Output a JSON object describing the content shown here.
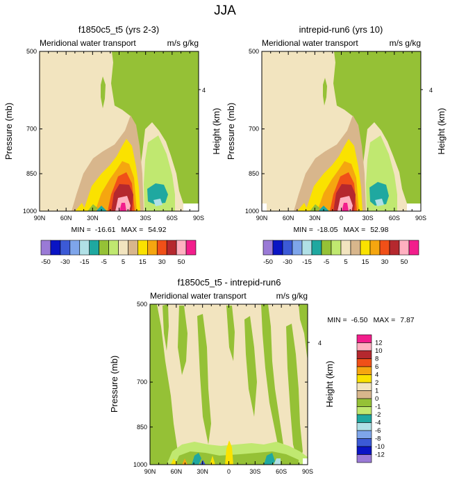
{
  "figure_title": "JJA",
  "colors": {
    "-50": "#9a7ad6",
    "-30": "#0a14c4",
    "-20": "#3c5ad6",
    "-15": "#7ea5ea",
    "-10": "#b0e0e6",
    "-5": "#1fa8a0",
    "0": "#95c136",
    "1": "#c0e870",
    "2": "#f2e4bf",
    "5": "#d8b68c",
    "15": "#fae200",
    "20": "#f5a610",
    "30": "#f05018",
    "40": "#b5282e",
    "50": "#ffb0c0",
    "60": "#f21e8c"
  },
  "chart_data": [
    {
      "type": "contour",
      "id": "panel-1",
      "title": "f1850c5_t5 (yrs 2-3)",
      "subtitle_left": "Meridional water transport",
      "subtitle_right": "m/s g/kg",
      "ylabel": "Pressure (mb)",
      "ylabel_right": "Height (km)",
      "yticks": [
        "500",
        "700",
        "850",
        "1000"
      ],
      "ytick_values": [
        500,
        700,
        850,
        1000
      ],
      "height_ticks": [
        "4"
      ],
      "xticks": [
        "90N",
        "60N",
        "30N",
        "0",
        "30S",
        "60S",
        "90S"
      ],
      "ylim": [
        500,
        1000
      ],
      "stats": {
        "min_label": "MIN =",
        "min": "-16.61",
        "max_label": "MAX =",
        "max": "54.92"
      }
    },
    {
      "type": "contour",
      "id": "panel-2",
      "title": "intrepid-run6 (yrs 10)",
      "subtitle_left": "Meridional water transport",
      "subtitle_right": "m/s g/kg",
      "ylabel": "Pressure (mb)",
      "ylabel_right": "Height (km)",
      "yticks": [
        "500",
        "700",
        "850",
        "1000"
      ],
      "ytick_values": [
        500,
        700,
        850,
        1000
      ],
      "height_ticks": [
        "4"
      ],
      "xticks": [
        "90N",
        "60N",
        "30N",
        "0",
        "30S",
        "60S",
        "90S"
      ],
      "ylim": [
        500,
        1000
      ],
      "stats": {
        "min_label": "MIN =",
        "min": "-18.05",
        "max_label": "MAX =",
        "max": "52.98"
      }
    },
    {
      "type": "contour",
      "id": "panel-3",
      "title": "f1850c5_t5 - intrepid-run6",
      "subtitle_left": "Meridional water transport",
      "subtitle_right": "m/s g/kg",
      "ylabel": "Pressure (mb)",
      "ylabel_right": "Height (km)",
      "yticks": [
        "500",
        "700",
        "850",
        "1000"
      ],
      "ytick_values": [
        500,
        700,
        850,
        1000
      ],
      "height_ticks": [
        "4"
      ],
      "xticks": [
        "90N",
        "60N",
        "30N",
        "0",
        "30S",
        "60S",
        "90S"
      ],
      "ylim": [
        500,
        1000
      ],
      "stats": {
        "min_label": "MIN =",
        "min": "-6.50",
        "max_label": "MAX =",
        "max": "7.87"
      }
    }
  ],
  "colorbar_top": {
    "labels": [
      "-50",
      "-30",
      "-15",
      "-5",
      "5",
      "15",
      "30",
      "50"
    ],
    "colors": [
      "#9a7ad6",
      "#0a14c4",
      "#3c5ad6",
      "#7ea5ea",
      "#b0e0e6",
      "#1fa8a0",
      "#95c136",
      "#c0e870",
      "#f2e4bf",
      "#d8b68c",
      "#fae200",
      "#f5a610",
      "#f05018",
      "#b5282e",
      "#ffb0c0",
      "#f21e8c"
    ]
  },
  "colorbar_diff": {
    "labels": [
      "12",
      "10",
      "8",
      "6",
      "4",
      "2",
      "1",
      "0",
      "-1",
      "-2",
      "-4",
      "-6",
      "-8",
      "-10",
      "-12"
    ],
    "colors": [
      "#f21e8c",
      "#ffb0c0",
      "#b5282e",
      "#f05018",
      "#f5a610",
      "#fae200",
      "#f2e4bf",
      "#d8b68c",
      "#95c136",
      "#c0e870",
      "#1fa8a0",
      "#b0e0e6",
      "#7ea5ea",
      "#3c5ad6",
      "#0a14c4",
      "#9a7ad6"
    ]
  }
}
